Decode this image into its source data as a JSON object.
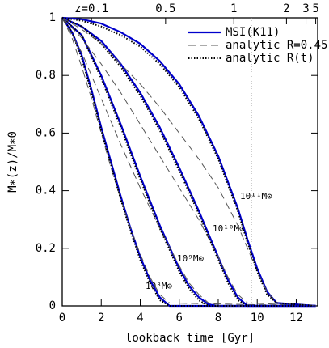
{
  "chart_data": {
    "type": "line",
    "xlabel": "lookback time [Gyr]",
    "ylabel": "M∗(z)/M∗0",
    "xlim": [
      0,
      13.1
    ],
    "ylim": [
      0,
      1
    ],
    "xticks": [
      0,
      2,
      4,
      6,
      8,
      10,
      12
    ],
    "yticks": [
      0,
      0.2,
      0.4,
      0.6,
      0.8,
      1
    ],
    "x2ticks": [
      {
        "value": 1.5,
        "label": "z=0.1"
      },
      {
        "value": 5.3,
        "label": "0.5"
      },
      {
        "value": 8.8,
        "label": "1"
      },
      {
        "value": 11.5,
        "label": "2"
      },
      {
        "value": 12.5,
        "label": "3"
      },
      {
        "value": 13.0,
        "label": "5"
      }
    ],
    "vline": 9.7,
    "legend": "upper right",
    "annotations": [
      "10⁸M⊙",
      "10⁹M⊙",
      "10¹⁰M⊙",
      "10¹¹M⊙"
    ],
    "series": [
      {
        "name": "MSI(K11)",
        "color": "#0000cc",
        "style": "solid",
        "x": [
          0,
          0.5,
          1,
          1.5,
          2,
          2.5,
          3,
          3.5,
          4,
          4.5,
          5,
          5.5,
          13
        ],
        "values": [
          1,
          0.95,
          0.87,
          0.75,
          0.62,
          0.5,
          0.38,
          0.27,
          0.17,
          0.09,
          0.03,
          0,
          0
        ]
      },
      {
        "name": "analytic R=0.45",
        "color": "#555555",
        "style": "dashed",
        "x": [
          0,
          0.5,
          1,
          1.5,
          2,
          2.5,
          3,
          3.5,
          4,
          4.5,
          5,
          5.5,
          13
        ],
        "values": [
          1,
          0.93,
          0.83,
          0.72,
          0.6,
          0.48,
          0.37,
          0.27,
          0.18,
          0.1,
          0.04,
          0.01,
          0
        ]
      },
      {
        "name": "analytic R(t)",
        "color": "#000000",
        "style": "dotted",
        "x": [
          0,
          0.5,
          1,
          1.5,
          2,
          2.5,
          3,
          3.5,
          4,
          4.5,
          5,
          5.5,
          13
        ],
        "values": [
          1,
          0.95,
          0.86,
          0.74,
          0.61,
          0.49,
          0.37,
          0.26,
          0.16,
          0.08,
          0.02,
          0,
          0
        ]
      },
      {
        "name": "MSI(K11)",
        "color": "#0000cc",
        "style": "solid",
        "x": [
          0,
          1,
          2,
          3,
          4,
          5,
          6,
          6.5,
          7,
          7.5,
          8,
          13
        ],
        "values": [
          1,
          0.94,
          0.8,
          0.63,
          0.45,
          0.28,
          0.13,
          0.07,
          0.03,
          0.005,
          0,
          0
        ]
      },
      {
        "name": "analytic R=0.45",
        "color": "#555555",
        "style": "dashed",
        "x": [
          0,
          1,
          2,
          3,
          4,
          5,
          6,
          6.5,
          7,
          7.5,
          8,
          13
        ],
        "values": [
          1,
          0.88,
          0.72,
          0.56,
          0.41,
          0.27,
          0.14,
          0.08,
          0.04,
          0.01,
          0,
          0
        ]
      },
      {
        "name": "analytic R(t)",
        "color": "#000000",
        "style": "dotted",
        "x": [
          0,
          1,
          2,
          3,
          4,
          5,
          6,
          6.5,
          7,
          7.5,
          8,
          13
        ],
        "values": [
          1,
          0.94,
          0.79,
          0.62,
          0.44,
          0.27,
          0.12,
          0.06,
          0.02,
          0,
          0,
          0
        ]
      },
      {
        "name": "MSI(K11)",
        "color": "#0000cc",
        "style": "solid",
        "x": [
          0,
          1,
          2,
          3,
          4,
          5,
          6,
          7,
          8,
          8.5,
          9,
          9.5,
          13
        ],
        "values": [
          1,
          0.97,
          0.92,
          0.84,
          0.74,
          0.62,
          0.48,
          0.33,
          0.17,
          0.09,
          0.03,
          0,
          0
        ]
      },
      {
        "name": "analytic R=0.45",
        "color": "#555555",
        "style": "dashed",
        "x": [
          0,
          1,
          2,
          3,
          4,
          5,
          6,
          7,
          8,
          8.5,
          9,
          9.5,
          13
        ],
        "values": [
          1,
          0.93,
          0.84,
          0.74,
          0.63,
          0.52,
          0.41,
          0.3,
          0.17,
          0.1,
          0.04,
          0.01,
          0
        ]
      },
      {
        "name": "analytic R(t)",
        "color": "#000000",
        "style": "dotted",
        "x": [
          0,
          1,
          2,
          3,
          4,
          5,
          6,
          7,
          8,
          8.5,
          9,
          9.5,
          13
        ],
        "values": [
          1,
          0.97,
          0.91,
          0.83,
          0.73,
          0.61,
          0.47,
          0.32,
          0.16,
          0.08,
          0.02,
          0,
          0
        ]
      },
      {
        "name": "MSI(K11)",
        "color": "#0000cc",
        "style": "solid",
        "x": [
          0,
          1,
          2,
          3,
          4,
          5,
          6,
          7,
          8,
          9,
          9.5,
          10,
          10.5,
          11,
          13
        ],
        "values": [
          1,
          0.995,
          0.98,
          0.95,
          0.91,
          0.85,
          0.77,
          0.66,
          0.52,
          0.34,
          0.23,
          0.13,
          0.05,
          0.01,
          0
        ]
      },
      {
        "name": "analytic R=0.45",
        "color": "#555555",
        "style": "dashed",
        "x": [
          0,
          1,
          2,
          3,
          4,
          5,
          6,
          7,
          8,
          9,
          9.5,
          10,
          10.5,
          11,
          13
        ],
        "values": [
          1,
          0.96,
          0.91,
          0.84,
          0.77,
          0.69,
          0.6,
          0.51,
          0.41,
          0.28,
          0.2,
          0.12,
          0.05,
          0.01,
          0
        ]
      },
      {
        "name": "analytic R(t)",
        "color": "#000000",
        "style": "dotted",
        "x": [
          0,
          1,
          2,
          3,
          4,
          5,
          6,
          7,
          8,
          9,
          9.5,
          10,
          10.5,
          11,
          13
        ],
        "values": [
          1,
          0.99,
          0.97,
          0.94,
          0.9,
          0.84,
          0.76,
          0.65,
          0.51,
          0.33,
          0.22,
          0.12,
          0.04,
          0.01,
          0
        ]
      }
    ]
  }
}
